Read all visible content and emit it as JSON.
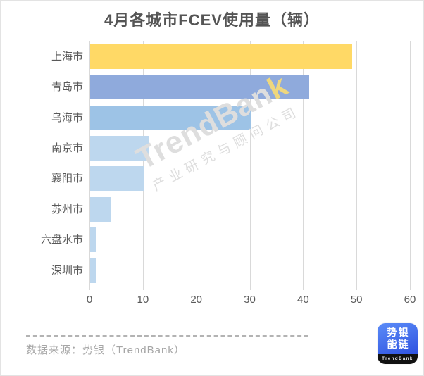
{
  "title": "4月各城市FCEV使用量（辆）",
  "chart_data": {
    "type": "bar",
    "orientation": "horizontal",
    "title": "4月各城市FCEV使用量（辆）",
    "categories": [
      "上海市",
      "青岛市",
      "乌海市",
      "南京市",
      "襄阳市",
      "苏州市",
      "六盘水市",
      "深圳市"
    ],
    "values": [
      49,
      41,
      30,
      11,
      10,
      4,
      1,
      1
    ],
    "bar_colors": [
      "#FFD966",
      "#8FAADC",
      "#9DC3E6",
      "#BDD7EE",
      "#BDD7EE",
      "#BDD7EE",
      "#BDD7EE",
      "#BDD7EE"
    ],
    "xlim": [
      0,
      60
    ],
    "x_ticks": [
      0,
      10,
      20,
      30,
      40,
      50,
      60
    ],
    "grid": "vertical",
    "gridline_color": "#d9d9d9",
    "axis_label_color": "#595959",
    "legend": "none"
  },
  "watermark": {
    "brand_head": "TrendBan",
    "brand_tail": "k",
    "tagline": "产业研究与顾问公司"
  },
  "footer": {
    "source_text": "数据来源：势银（TrendBank）"
  },
  "logo": {
    "line1": "势银",
    "line2": "能链",
    "caption": "TrendBank",
    "bg_top": "#5b8cf8",
    "bg_bottom": "#2f52e0"
  }
}
